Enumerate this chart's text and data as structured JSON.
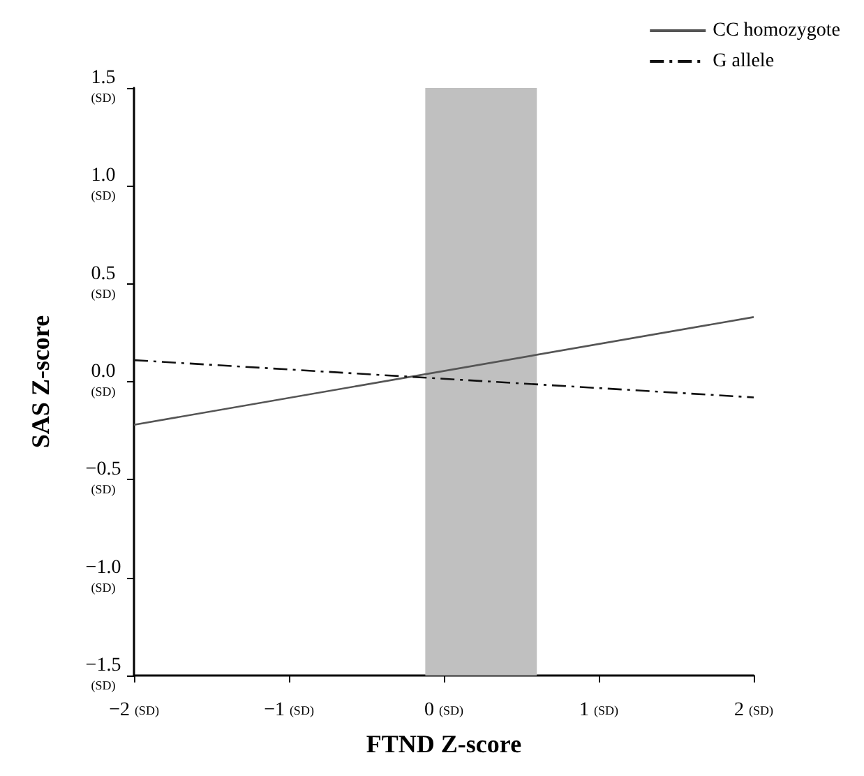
{
  "chart_data": {
    "type": "line",
    "xlabel": "FTND Z-score",
    "ylabel": "SAS Z-score",
    "x": [
      -2,
      2
    ],
    "series": [
      {
        "name": "CC homozygote",
        "color": "#555555",
        "values": [
          -0.22,
          0.33
        ],
        "line_style": "solid"
      },
      {
        "name": "G allele",
        "color": "#111111",
        "values": [
          0.11,
          -0.08
        ],
        "line_style": "dashed"
      }
    ],
    "xlim": [
      -2,
      2
    ],
    "xticks": [
      {
        "value": -2,
        "label": "−2 (SD)"
      },
      {
        "value": -1,
        "label": "−1 (SD)"
      },
      {
        "value": 0,
        "label": "0 (SD)"
      },
      {
        "value": 1,
        "label": "1 (SD)"
      },
      {
        "value": 2,
        "label": "2 (SD)"
      }
    ],
    "ylim": [
      -1.5,
      1.5
    ],
    "yticks": [
      {
        "value": -1.5,
        "label": "−1.5\n(SD)"
      },
      {
        "value": -1,
        "label": "−1.0\n(SD)"
      },
      {
        "value": -0.5,
        "label": "−0.5\n(SD)"
      },
      {
        "value": 0,
        "label": "0.0\n(SD)"
      },
      {
        "value": 0.5,
        "label": "0.5\n(SD)"
      },
      {
        "value": 1,
        "label": "1.0\n(SD)"
      },
      {
        "value": 1.5,
        "label": "1.5\n(SD)"
      }
    ],
    "bands": [
      {
        "axis": "x",
        "from": -0.12,
        "to": 0.6,
        "color": "#c0c0c0"
      }
    ],
    "grid": false,
    "legend": "top right",
    "marker": "none"
  }
}
